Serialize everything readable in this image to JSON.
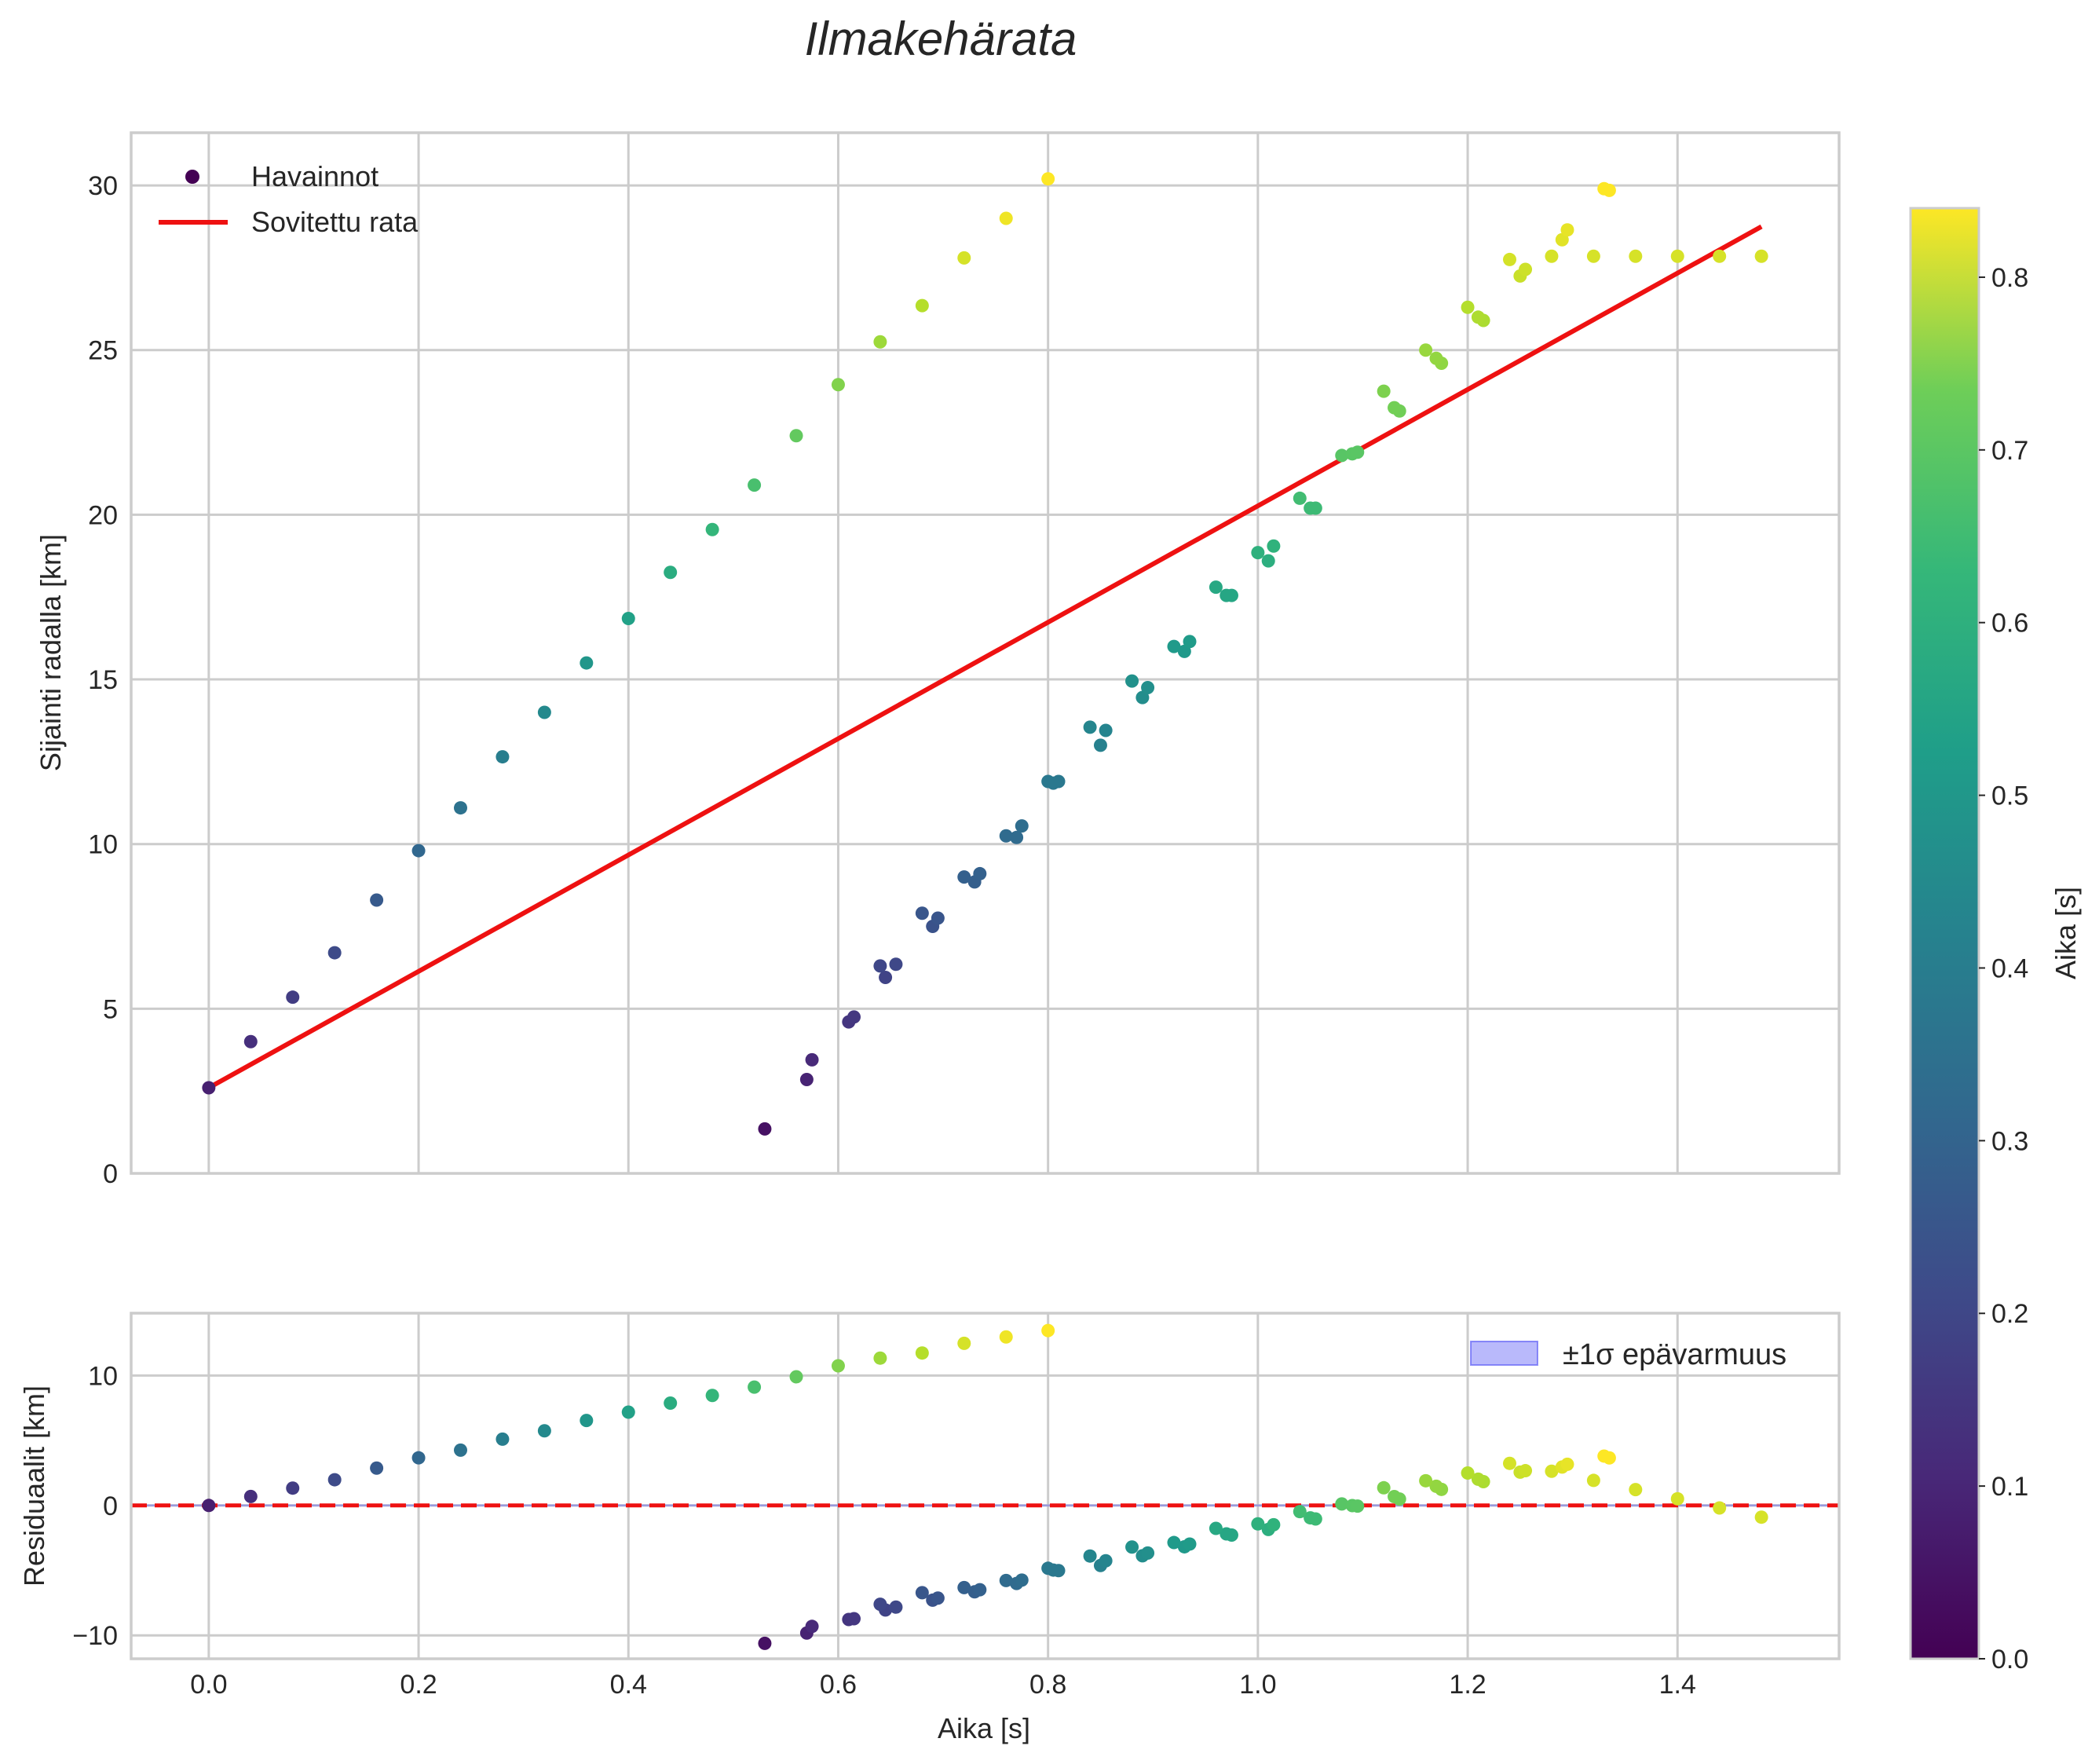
{
  "chart_data": {
    "type": "scatter",
    "title": "Ilmakehärata",
    "colorbar": {
      "label": "Aika [s]",
      "range": [
        0.0,
        0.84
      ],
      "ticks": [
        "0.0",
        "0.1",
        "0.2",
        "0.3",
        "0.4",
        "0.5",
        "0.6",
        "0.7",
        "0.8"
      ],
      "colormap": "viridis"
    },
    "main_panel": {
      "xlabel": "Aika [s]",
      "ylabel": "Sijainti radalla [km]",
      "xlim": [
        -0.074,
        1.554
      ],
      "ylim": [
        0,
        31.6
      ],
      "yticks": [
        "0",
        "5",
        "10",
        "15",
        "20",
        "25",
        "30"
      ],
      "grid": true,
      "legend": {
        "placement": "top-left",
        "entries": [
          "Havainnot",
          "Sovitettu rata"
        ]
      },
      "fit_line": {
        "name": "Sovitettu rata",
        "color": "#ee1111",
        "x": [
          0.0,
          1.48
        ],
        "y": [
          2.6,
          28.75
        ]
      },
      "observations_branch_a": {
        "x": [
          0.0,
          0.04,
          0.08,
          0.12,
          0.16,
          0.2,
          0.24,
          0.28,
          0.32,
          0.36,
          0.4,
          0.44,
          0.48,
          0.52,
          0.56,
          0.6,
          0.64,
          0.68,
          0.72,
          0.76,
          0.8
        ],
        "y": [
          2.6,
          4.0,
          5.35,
          6.7,
          8.3,
          9.8,
          11.1,
          12.65,
          14.0,
          15.5,
          16.85,
          18.25,
          19.55,
          20.9,
          22.4,
          23.95,
          25.25,
          26.35,
          27.8,
          29.0,
          30.2
        ]
      },
      "observations_branch_b": {
        "x": [
          0.53,
          0.57,
          0.575,
          0.61,
          0.615,
          0.64,
          0.645,
          0.655,
          0.68,
          0.69,
          0.695,
          0.72,
          0.73,
          0.735,
          0.76,
          0.77,
          0.775,
          0.8,
          0.805,
          0.81,
          0.84,
          0.85,
          0.855,
          0.88,
          0.89,
          0.895,
          0.92,
          0.93,
          0.935,
          0.96,
          0.97,
          0.975,
          1.0,
          1.01,
          1.015,
          1.04,
          1.05,
          1.055,
          1.08,
          1.09,
          1.095,
          1.12,
          1.13,
          1.135,
          1.16,
          1.17,
          1.175,
          1.2,
          1.21,
          1.215,
          1.24,
          1.25,
          1.255,
          1.28,
          1.29,
          1.295,
          1.32,
          1.33,
          1.335,
          1.36,
          1.4,
          1.44,
          1.48
        ],
        "y": [
          1.35,
          2.85,
          3.45,
          4.6,
          4.75,
          6.3,
          5.95,
          6.35,
          7.9,
          7.5,
          7.75,
          9.0,
          8.85,
          9.1,
          10.25,
          10.2,
          10.55,
          11.9,
          11.85,
          11.9,
          13.55,
          13.0,
          13.45,
          14.95,
          14.45,
          14.75,
          16.0,
          15.85,
          16.15,
          17.8,
          17.55,
          17.55,
          18.85,
          18.6,
          19.05,
          20.5,
          20.2,
          20.2,
          21.8,
          21.85,
          21.9,
          23.75,
          23.25,
          23.15,
          25.0,
          24.75,
          24.6,
          26.3,
          26.0,
          25.9,
          27.75,
          27.25,
          27.45,
          27.85,
          28.35,
          28.65,
          27.85,
          29.9,
          29.85,
          27.85,
          27.85,
          27.85,
          27.85
        ]
      }
    },
    "residual_panel": {
      "xlabel": "Aika [s]",
      "ylabel": "Residuaalit [km]",
      "xlim": [
        -0.074,
        1.554
      ],
      "ylim": [
        -11.8,
        14.8
      ],
      "xticks": [
        "0.0",
        "0.2",
        "0.4",
        "0.6",
        "0.8",
        "1.0",
        "1.2",
        "1.4"
      ],
      "yticks": [
        "10",
        "0",
        "−10"
      ],
      "grid": true,
      "zero_line": {
        "y": 0,
        "style": "dashed",
        "color": "#ee1111"
      },
      "uncertainty_band": {
        "label": "±1σ epävarmuus",
        "half_width": 0.08,
        "color": "#4f4ff5"
      },
      "legend": {
        "placement": "top-right",
        "entries": [
          "±1σ epävarmuus"
        ]
      }
    }
  }
}
